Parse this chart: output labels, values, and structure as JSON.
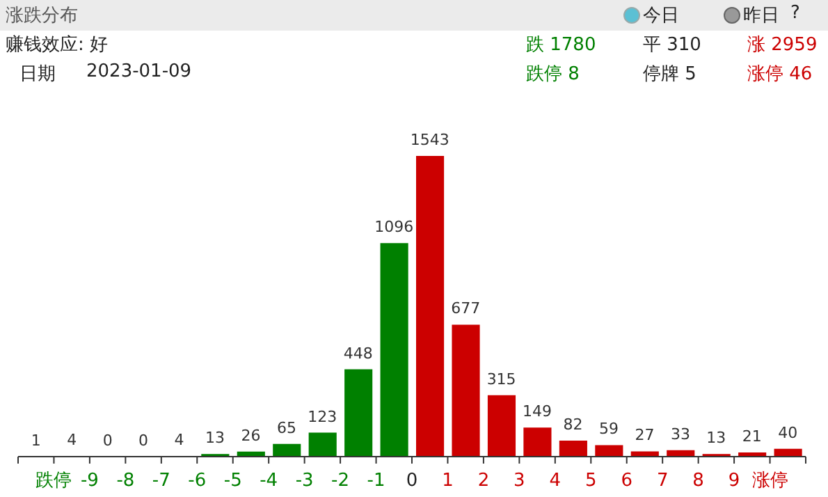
{
  "chart_data": {
    "type": "bar",
    "title": "涨跌分布",
    "x": [
      -10.5,
      -9.5,
      -8.5,
      -7.5,
      -6.5,
      -5.5,
      -4.5,
      -3.5,
      -2.5,
      -1.5,
      -0.5,
      0.5,
      1.5,
      2.5,
      3.5,
      4.5,
      5.5,
      6.5,
      7.5,
      8.5,
      9.5,
      10.5
    ],
    "values": [
      1,
      4,
      0,
      0,
      4,
      13,
      26,
      65,
      123,
      448,
      1096,
      1543,
      677,
      315,
      149,
      82,
      59,
      27,
      33,
      13,
      21,
      40
    ],
    "colors": [
      "#008000",
      "#008000",
      "#008000",
      "#008000",
      "#008000",
      "#008000",
      "#008000",
      "#008000",
      "#008000",
      "#008000",
      "#008000",
      "#cc0000",
      "#cc0000",
      "#cc0000",
      "#cc0000",
      "#cc0000",
      "#cc0000",
      "#cc0000",
      "#cc0000",
      "#cc0000",
      "#cc0000",
      "#cc0000"
    ],
    "xlim": [
      -11,
      11
    ],
    "xticks": [
      {
        "value": -11,
        "label": null
      },
      {
        "value": -10,
        "label": "跌停"
      },
      -9,
      -8,
      -7,
      -6,
      -5,
      -4,
      -3,
      -2,
      -1,
      0,
      1,
      2,
      3,
      4,
      5,
      6,
      7,
      8,
      9,
      {
        "value": 10,
        "label": "涨停"
      },
      {
        "value": 11,
        "label": null
      }
    ],
    "data_labels": true,
    "grid": false,
    "legend": false,
    "annotations": [
      "今日",
      "昨日",
      "?",
      "赚钱效应: 好",
      "跌 1780",
      "平 310",
      "涨 2959",
      "日期",
      "2023-01-09",
      "跌停 8",
      "停牌 5",
      "涨停 46"
    ]
  }
}
